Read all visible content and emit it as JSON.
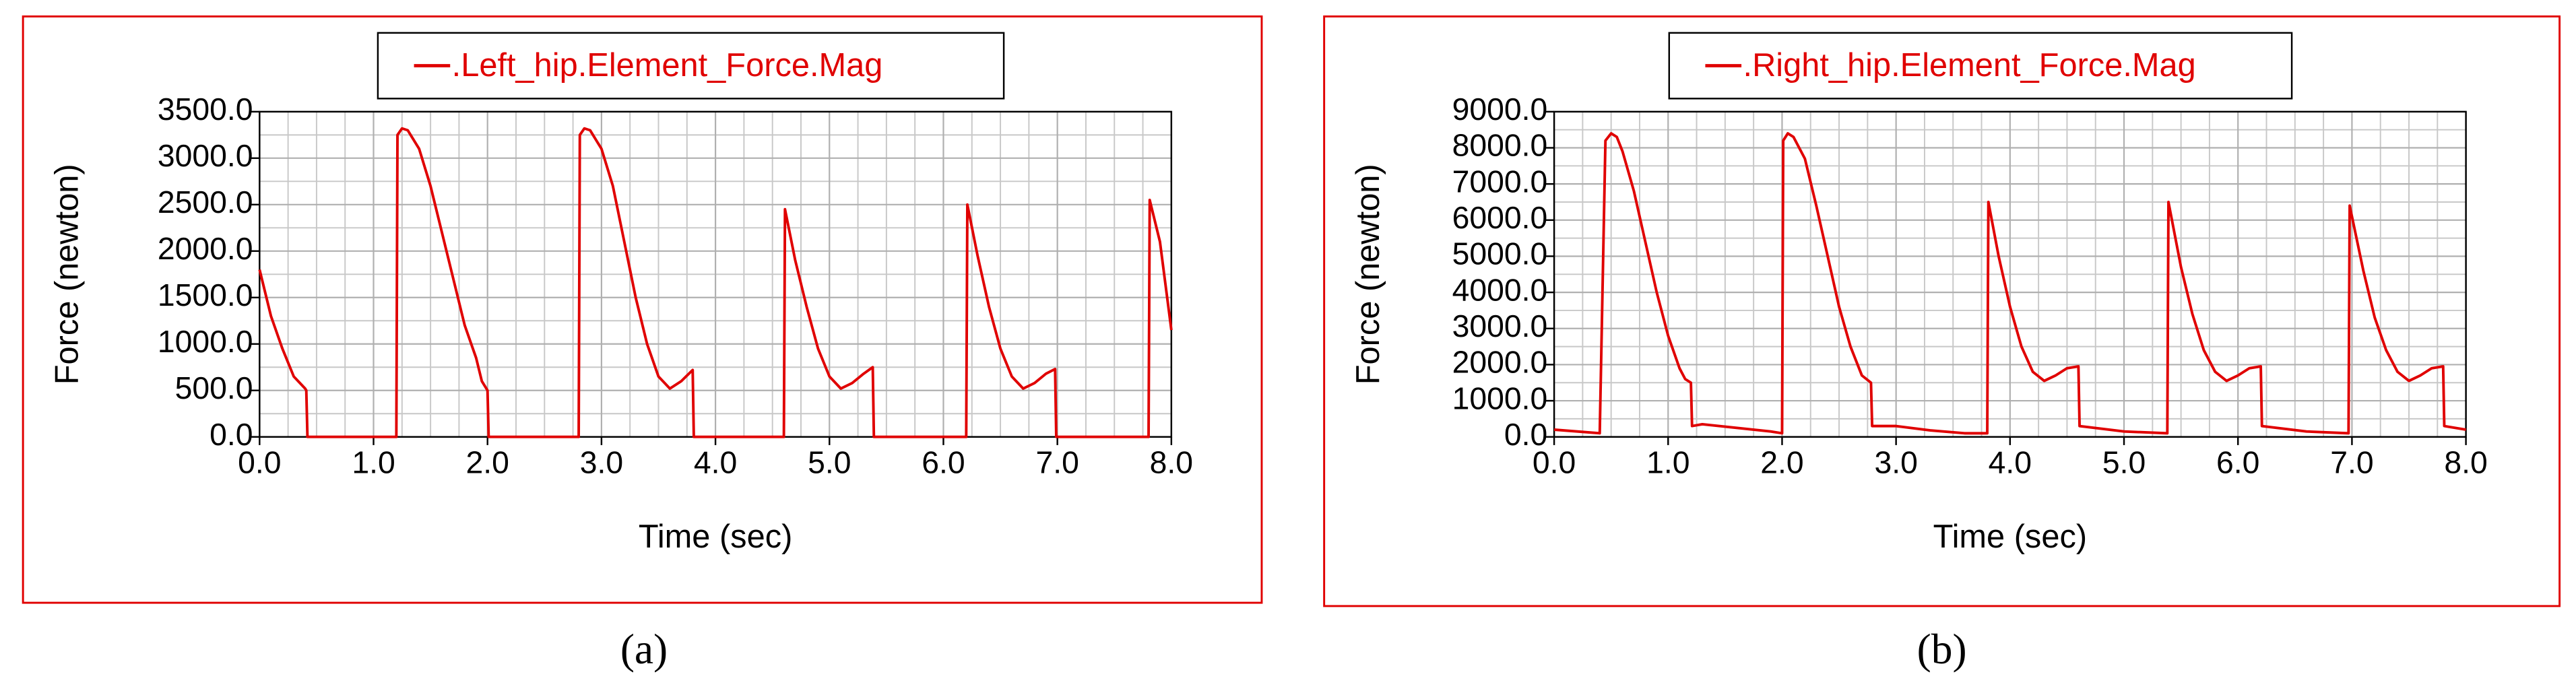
{
  "chart_data": [
    {
      "type": "line",
      "xlabel": "Time (sec)",
      "ylabel": "Force (newton)",
      "caption": "(a)",
      "grid": true,
      "series": [
        {
          "name": ".Left_hip.Element_Force.Mag",
          "color": "#e00000",
          "axis": "y"
        }
      ],
      "x": [
        0,
        0.1,
        0.2,
        0.3,
        0.4,
        0.41,
        0.42,
        1.2,
        1.21,
        1.25,
        1.3,
        1.4,
        1.5,
        1.6,
        1.7,
        1.8,
        1.9,
        1.95,
        2.0,
        2.01,
        2.8,
        2.81,
        2.85,
        2.9,
        3.0,
        3.1,
        3.2,
        3.3,
        3.4,
        3.5,
        3.6,
        3.7,
        3.8,
        3.81,
        4.6,
        4.61,
        4.7,
        4.8,
        4.9,
        5.0,
        5.1,
        5.2,
        5.3,
        5.38,
        5.39,
        6.2,
        6.21,
        6.3,
        6.4,
        6.5,
        6.6,
        6.7,
        6.8,
        6.9,
        6.98,
        6.99,
        7.8,
        7.81,
        7.9,
        8.0
      ],
      "values": [
        1800,
        1300,
        950,
        650,
        520,
        500,
        0,
        0,
        3250,
        3320,
        3300,
        3100,
        2700,
        2200,
        1700,
        1200,
        850,
        600,
        500,
        0,
        0,
        3250,
        3320,
        3300,
        3100,
        2700,
        2100,
        1500,
        1000,
        650,
        520,
        600,
        720,
        0,
        0,
        2450,
        1900,
        1400,
        950,
        650,
        520,
        580,
        680,
        750,
        0,
        0,
        2500,
        1950,
        1400,
        950,
        650,
        520,
        580,
        680,
        730,
        0,
        0,
        2550,
        2100,
        1150
      ],
      "xlim": [
        0,
        8
      ],
      "xticks": [
        {
          "value": 0,
          "label": "0.0"
        },
        {
          "value": 1,
          "label": "1.0"
        },
        {
          "value": 2,
          "label": "2.0"
        },
        {
          "value": 3,
          "label": "3.0"
        },
        {
          "value": 4,
          "label": "4.0"
        },
        {
          "value": 5,
          "label": "5.0"
        },
        {
          "value": 6,
          "label": "6.0"
        },
        {
          "value": 7,
          "label": "7.0"
        },
        {
          "value": 8,
          "label": "8.0"
        }
      ],
      "ylim": [
        0,
        3500
      ],
      "yticks": [
        {
          "value": 0,
          "label": "0.0"
        },
        {
          "value": 500,
          "label": "500.0"
        },
        {
          "value": 1000,
          "label": "1000.0"
        },
        {
          "value": 1500,
          "label": "1500.0"
        },
        {
          "value": 2000,
          "label": "2000.0"
        },
        {
          "value": 2500,
          "label": "2500.0"
        },
        {
          "value": 3000,
          "label": "3000.0"
        },
        {
          "value": 3500,
          "label": "3500.0"
        }
      ]
    },
    {
      "type": "line",
      "xlabel": "Time (sec)",
      "ylabel": "Force (newton)",
      "caption": "(b)",
      "grid": true,
      "series": [
        {
          "name": ".Right_hip.Element_Force.Mag",
          "color": "#e00000",
          "axis": "y"
        }
      ],
      "x": [
        0,
        0.4,
        0.45,
        0.5,
        0.55,
        0.6,
        0.7,
        0.8,
        0.9,
        1.0,
        1.1,
        1.15,
        1.2,
        1.21,
        1.3,
        1.6,
        1.9,
        2.0,
        2.01,
        2.05,
        2.1,
        2.2,
        2.3,
        2.4,
        2.5,
        2.6,
        2.7,
        2.78,
        2.79,
        3.0,
        3.3,
        3.6,
        3.8,
        3.81,
        3.9,
        4.0,
        4.1,
        4.2,
        4.3,
        4.4,
        4.5,
        4.6,
        4.61,
        5.0,
        5.38,
        5.39,
        5.5,
        5.6,
        5.7,
        5.8,
        5.9,
        6.0,
        6.1,
        6.2,
        6.21,
        6.6,
        6.97,
        6.98,
        7.1,
        7.2,
        7.3,
        7.4,
        7.5,
        7.6,
        7.7,
        7.8,
        7.81,
        8.0
      ],
      "values": [
        200,
        100,
        8200,
        8400,
        8300,
        7900,
        6800,
        5400,
        4000,
        2800,
        1900,
        1600,
        1500,
        300,
        350,
        250,
        150,
        100,
        8200,
        8400,
        8300,
        7700,
        6400,
        5000,
        3600,
        2500,
        1700,
        1500,
        300,
        300,
        180,
        100,
        100,
        6500,
        5000,
        3600,
        2500,
        1800,
        1550,
        1700,
        1900,
        1950,
        300,
        150,
        100,
        6500,
        4700,
        3400,
        2400,
        1800,
        1550,
        1700,
        1900,
        1950,
        300,
        150,
        100,
        6400,
        4600,
        3300,
        2400,
        1800,
        1550,
        1700,
        1900,
        1950,
        300,
        200
      ],
      "xlim": [
        0,
        8
      ],
      "xticks": [
        {
          "value": 0,
          "label": "0.0"
        },
        {
          "value": 1,
          "label": "1.0"
        },
        {
          "value": 2,
          "label": "2.0"
        },
        {
          "value": 3,
          "label": "3.0"
        },
        {
          "value": 4,
          "label": "4.0"
        },
        {
          "value": 5,
          "label": "5.0"
        },
        {
          "value": 6,
          "label": "6.0"
        },
        {
          "value": 7,
          "label": "7.0"
        },
        {
          "value": 8,
          "label": "8.0"
        }
      ],
      "ylim": [
        0,
        9000
      ],
      "yticks": [
        {
          "value": 0,
          "label": "0.0"
        },
        {
          "value": 1000,
          "label": "1000.0"
        },
        {
          "value": 2000,
          "label": "2000.0"
        },
        {
          "value": 3000,
          "label": "3000.0"
        },
        {
          "value": 4000,
          "label": "4000.0"
        },
        {
          "value": 5000,
          "label": "5000.0"
        },
        {
          "value": 6000,
          "label": "6000.0"
        },
        {
          "value": 7000,
          "label": "7000.0"
        },
        {
          "value": 8000,
          "label": "8000.0"
        },
        {
          "value": 9000,
          "label": "9000.0"
        }
      ]
    }
  ]
}
